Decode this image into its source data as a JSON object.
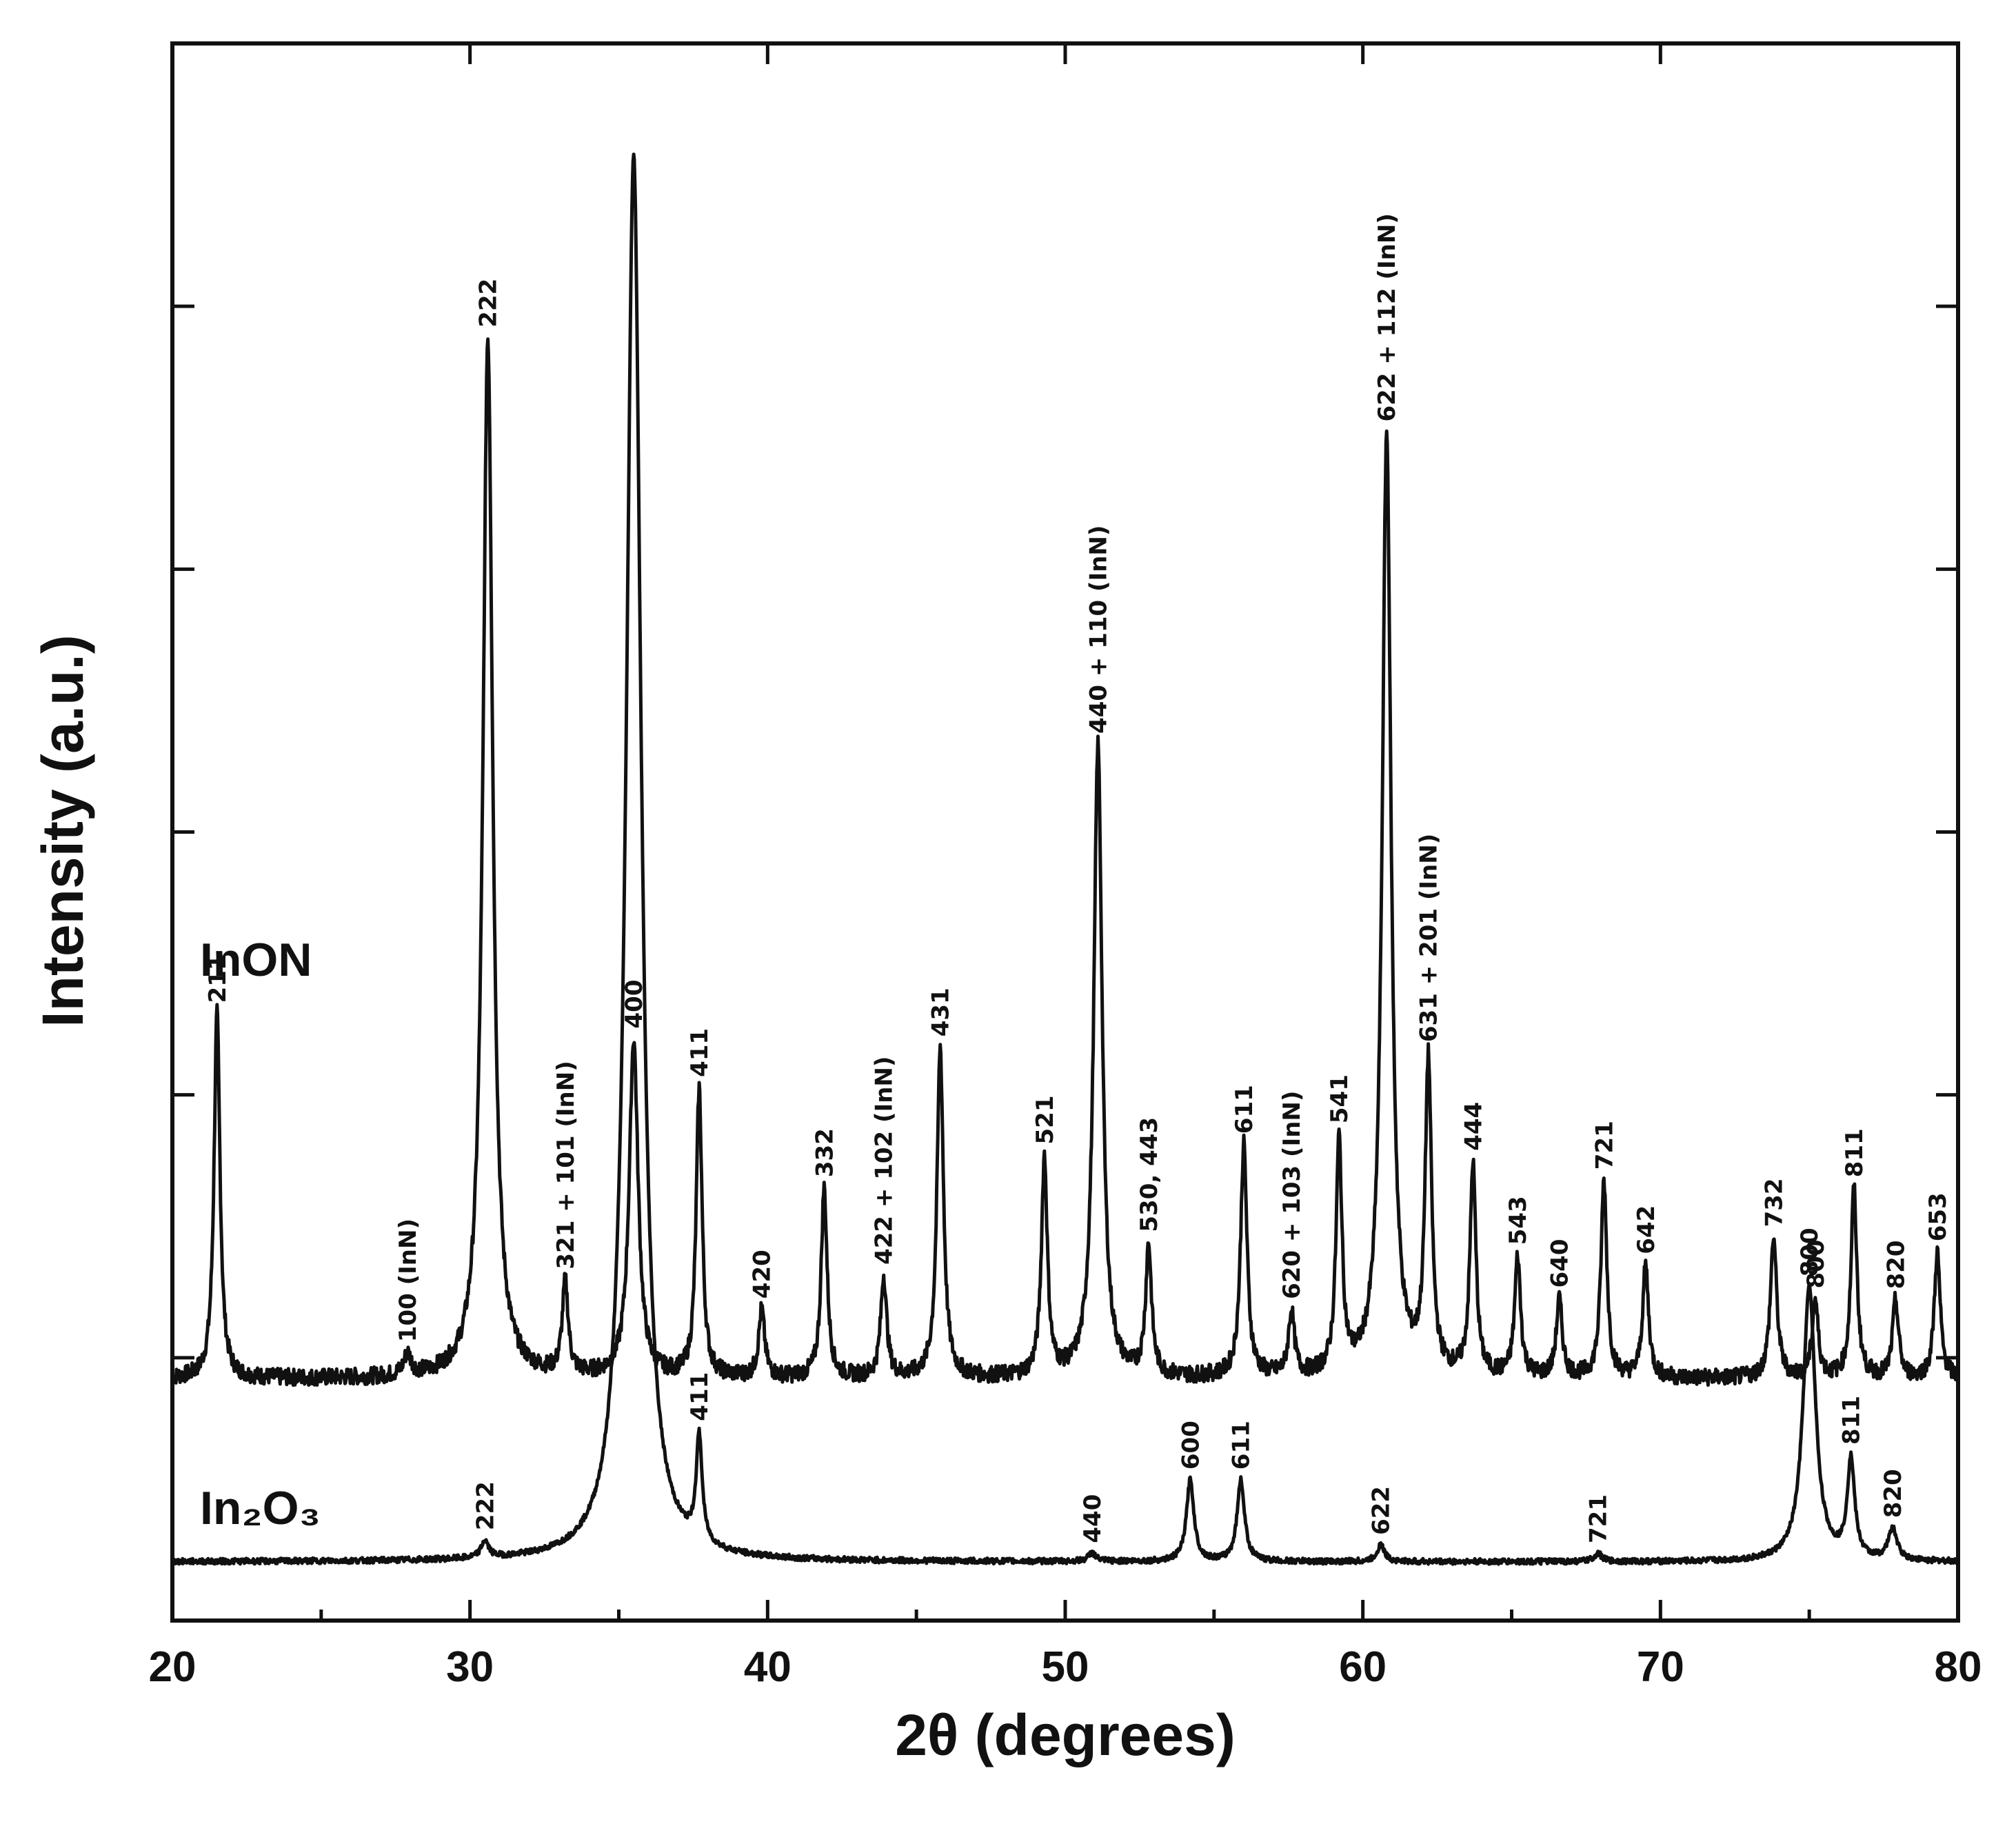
{
  "chart_data": {
    "type": "line",
    "xlabel": "2θ (degrees)",
    "ylabel": "Intensity (a.u.)",
    "xlim": [
      20,
      80
    ],
    "x_ticks": [
      20,
      30,
      40,
      50,
      60,
      70,
      80
    ],
    "y_ticklabels_shown": false,
    "grid": false,
    "series": [
      {
        "name": "InON",
        "baseline": 0.13,
        "peaks": [
          {
            "x": 21.5,
            "h": 0.26,
            "w": 0.12,
            "label": "211"
          },
          {
            "x": 27.9,
            "h": 0.015,
            "w": 0.15,
            "label": "100 (InN)"
          },
          {
            "x": 30.6,
            "h": 0.74,
            "w": 0.2,
            "label": "222"
          },
          {
            "x": 33.2,
            "h": 0.065,
            "w": 0.12,
            "label": "321 + 101 (InN)"
          },
          {
            "x": 35.5,
            "h": 0.24,
            "w": 0.18,
            "label": "400"
          },
          {
            "x": 37.7,
            "h": 0.205,
            "w": 0.12,
            "label": "411"
          },
          {
            "x": 39.8,
            "h": 0.048,
            "w": 0.12,
            "label": "420"
          },
          {
            "x": 41.9,
            "h": 0.135,
            "w": 0.12,
            "label": "332"
          },
          {
            "x": 43.9,
            "h": 0.072,
            "w": 0.12,
            "label": "422 + 102 (InN)"
          },
          {
            "x": 45.8,
            "h": 0.235,
            "w": 0.13,
            "label": "431"
          },
          {
            "x": 49.3,
            "h": 0.155,
            "w": 0.12,
            "label": "521"
          },
          {
            "x": 51.1,
            "h": 0.45,
            "w": 0.17,
            "label": "440 + 110 (InN)"
          },
          {
            "x": 52.8,
            "h": 0.092,
            "w": 0.12,
            "label": "530, 443"
          },
          {
            "x": 56.0,
            "h": 0.165,
            "w": 0.13,
            "label": "611"
          },
          {
            "x": 57.6,
            "h": 0.045,
            "w": 0.12,
            "label": "620 + 103 (InN)"
          },
          {
            "x": 59.2,
            "h": 0.165,
            "w": 0.12,
            "label": "541"
          },
          {
            "x": 60.8,
            "h": 0.67,
            "w": 0.18,
            "label": "622 + 112 (InN)"
          },
          {
            "x": 62.2,
            "h": 0.22,
            "w": 0.13,
            "label": "631 + 201 (InN)"
          },
          {
            "x": 63.7,
            "h": 0.15,
            "w": 0.12,
            "label": "444"
          },
          {
            "x": 65.2,
            "h": 0.085,
            "w": 0.12,
            "label": "543"
          },
          {
            "x": 66.6,
            "h": 0.055,
            "w": 0.12,
            "label": "640"
          },
          {
            "x": 68.1,
            "h": 0.14,
            "w": 0.12,
            "label": "721"
          },
          {
            "x": 69.5,
            "h": 0.08,
            "w": 0.12,
            "label": "642"
          },
          {
            "x": 73.8,
            "h": 0.1,
            "w": 0.13,
            "label": "732"
          },
          {
            "x": 75.2,
            "h": 0.055,
            "w": 0.12,
            "label": "800"
          },
          {
            "x": 76.5,
            "h": 0.135,
            "w": 0.12,
            "label": "811"
          },
          {
            "x": 77.9,
            "h": 0.055,
            "w": 0.12,
            "label": "820"
          },
          {
            "x": 79.3,
            "h": 0.09,
            "w": 0.12,
            "label": "653"
          }
        ]
      },
      {
        "name": "In₂O₃",
        "baseline": 0.0,
        "peaks": [
          {
            "x": 30.5,
            "h": 0.012,
            "w": 0.15,
            "label": "222"
          },
          {
            "x": 35.5,
            "h": 1.0,
            "w": 0.3,
            "label": ""
          },
          {
            "x": 37.7,
            "h": 0.075,
            "w": 0.12,
            "label": "411"
          },
          {
            "x": 50.9,
            "h": 0.006,
            "w": 0.15,
            "label": "440"
          },
          {
            "x": 54.2,
            "h": 0.058,
            "w": 0.15,
            "label": "600"
          },
          {
            "x": 55.9,
            "h": 0.058,
            "w": 0.15,
            "label": "611"
          },
          {
            "x": 60.6,
            "h": 0.012,
            "w": 0.15,
            "label": "622"
          },
          {
            "x": 67.9,
            "h": 0.006,
            "w": 0.15,
            "label": "721"
          },
          {
            "x": 75.0,
            "h": 0.195,
            "w": 0.25,
            "label": "800"
          },
          {
            "x": 76.4,
            "h": 0.07,
            "w": 0.15,
            "label": "811"
          },
          {
            "x": 77.8,
            "h": 0.022,
            "w": 0.18,
            "label": "820"
          }
        ]
      }
    ]
  }
}
